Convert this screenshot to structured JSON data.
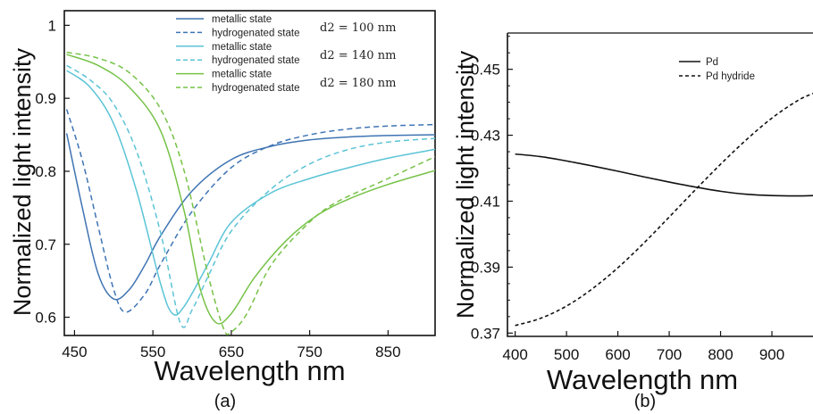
{
  "chart_data": [
    {
      "type": "line",
      "panel_label": "(a)",
      "xlabel": "Wavelength nm",
      "ylabel": "Normalized light intensity",
      "xlim": [
        437,
        910
      ],
      "ylim": [
        0.575,
        1.02
      ],
      "xticks": [
        450,
        550,
        650,
        750,
        850
      ],
      "yticks": [
        0.6,
        0.7,
        0.8,
        0.9,
        1
      ],
      "yticklabels": [
        "0.6",
        "0.7",
        "0.8",
        "0.9",
        "1"
      ],
      "legend_groups": [
        "d2 = 100 nm",
        "d2 = 140 nm",
        "d2 = 180 nm"
      ],
      "series": [
        {
          "name": "metallic state",
          "group": 0,
          "color": "#3f74b3",
          "dash": false,
          "x": [
            440,
            460,
            480,
            500,
            520,
            540,
            560,
            600,
            650,
            700,
            750,
            800,
            850,
            910
          ],
          "y": [
            0.852,
            0.75,
            0.66,
            0.625,
            0.638,
            0.672,
            0.712,
            0.773,
            0.816,
            0.834,
            0.843,
            0.847,
            0.849,
            0.85
          ]
        },
        {
          "name": "hydrogenated state",
          "group": 0,
          "color": "#3f74b3",
          "dash": true,
          "x": [
            440,
            460,
            480,
            500,
            515,
            540,
            560,
            600,
            650,
            700,
            750,
            800,
            850,
            910
          ],
          "y": [
            0.885,
            0.815,
            0.725,
            0.638,
            0.607,
            0.632,
            0.673,
            0.745,
            0.805,
            0.835,
            0.85,
            0.858,
            0.862,
            0.864
          ]
        },
        {
          "name": "metallic state",
          "group": 1,
          "color": "#5bc4d6",
          "dash": false,
          "x": [
            440,
            470,
            500,
            530,
            560,
            575,
            590,
            620,
            650,
            700,
            750,
            800,
            850,
            910
          ],
          "y": [
            0.938,
            0.915,
            0.865,
            0.77,
            0.645,
            0.605,
            0.615,
            0.672,
            0.73,
            0.77,
            0.79,
            0.805,
            0.818,
            0.83
          ]
        },
        {
          "name": "hydrogenated state",
          "group": 1,
          "color": "#5bc4d6",
          "dash": true,
          "x": [
            440,
            470,
            500,
            530,
            560,
            585,
            600,
            620,
            650,
            700,
            750,
            800,
            850,
            910
          ],
          "y": [
            0.945,
            0.925,
            0.892,
            0.825,
            0.715,
            0.592,
            0.61,
            0.655,
            0.718,
            0.775,
            0.81,
            0.83,
            0.84,
            0.845
          ]
        },
        {
          "name": "metallic state",
          "group": 2,
          "color": "#76c247",
          "dash": false,
          "x": [
            440,
            480,
            520,
            560,
            590,
            610,
            630,
            650,
            680,
            720,
            760,
            800,
            850,
            910
          ],
          "y": [
            0.96,
            0.945,
            0.915,
            0.855,
            0.745,
            0.64,
            0.593,
            0.605,
            0.655,
            0.705,
            0.74,
            0.762,
            0.782,
            0.801
          ]
        },
        {
          "name": "hydrogenated state",
          "group": 2,
          "color": "#76c247",
          "dash": true,
          "x": [
            440,
            480,
            520,
            560,
            590,
            620,
            640,
            650,
            670,
            700,
            740,
            780,
            850,
            910
          ],
          "y": [
            0.963,
            0.955,
            0.935,
            0.885,
            0.8,
            0.66,
            0.585,
            0.58,
            0.605,
            0.67,
            0.72,
            0.755,
            0.79,
            0.82
          ]
        }
      ]
    },
    {
      "type": "line",
      "panel_label": "(b)",
      "xlabel": "Wavelength nm",
      "ylabel": "Normalized light intensity",
      "xlim": [
        385,
        980
      ],
      "ylim": [
        0.369,
        0.461
      ],
      "xticks": [
        400,
        500,
        600,
        700,
        800,
        900
      ],
      "yticks": [
        0.37,
        0.39,
        0.41,
        0.43,
        0.45
      ],
      "yticklabels": [
        "0.37",
        "0.39",
        "0.41",
        "0.43",
        "0.45"
      ],
      "series": [
        {
          "name": "Pd",
          "color": "#111111",
          "dash": false,
          "x": [
            400,
            450,
            500,
            550,
            600,
            650,
            700,
            750,
            800,
            850,
            900,
            950,
            980
          ],
          "y": [
            0.4243,
            0.4235,
            0.4222,
            0.4207,
            0.4191,
            0.4174,
            0.4158,
            0.4143,
            0.413,
            0.4121,
            0.4117,
            0.4116,
            0.4117
          ]
        },
        {
          "name": "Pd hydride",
          "color": "#111111",
          "dash": true,
          "x": [
            400,
            450,
            500,
            550,
            600,
            650,
            700,
            750,
            800,
            850,
            900,
            950,
            980
          ],
          "y": [
            0.3723,
            0.3745,
            0.3782,
            0.3834,
            0.3898,
            0.3972,
            0.4052,
            0.4133,
            0.4212,
            0.4286,
            0.4352,
            0.4405,
            0.4427
          ]
        }
      ]
    }
  ]
}
